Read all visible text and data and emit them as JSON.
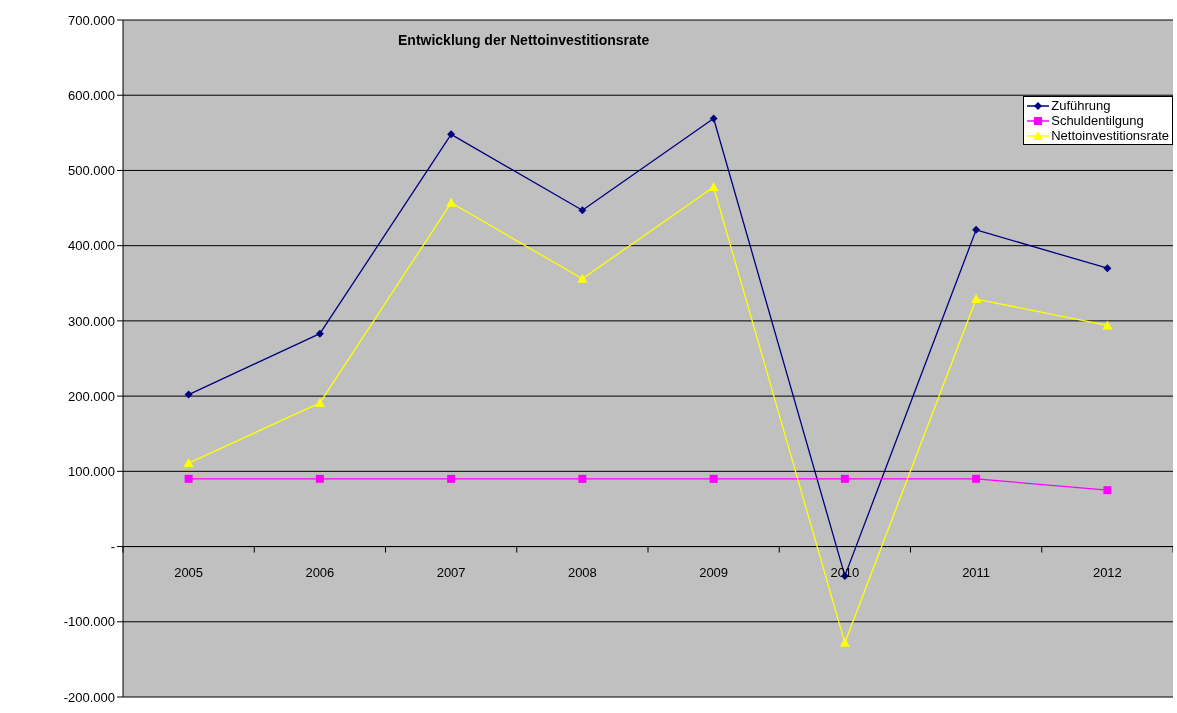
{
  "chart_data": {
    "type": "line",
    "title": "Entwicklung der Nettoinvestitionsrate",
    "categories": [
      "2005",
      "2006",
      "2007",
      "2008",
      "2009",
      "2010",
      "2011",
      "2012"
    ],
    "series": [
      {
        "name": "Zuführung",
        "color": "#000080",
        "marker": "diamond",
        "values": [
          202000,
          283000,
          548000,
          447000,
          569000,
          -39000,
          421000,
          370000
        ]
      },
      {
        "name": "Schuldentilgung",
        "color": "#ff00ff",
        "marker": "square",
        "values": [
          90000,
          90000,
          90000,
          90000,
          90000,
          90000,
          90000,
          75000
        ]
      },
      {
        "name": "Nettoinvestitionsrate",
        "color": "#ffff00",
        "marker": "triangle",
        "values": [
          111000,
          191000,
          457000,
          356000,
          478000,
          -128000,
          329000,
          294000
        ]
      }
    ],
    "ylim": [
      -200000,
      700000
    ],
    "yticks": [
      {
        "value": -200000,
        "label": "-200.000"
      },
      {
        "value": -100000,
        "label": "-100.000"
      },
      {
        "value": 0,
        "label": "-"
      },
      {
        "value": 100000,
        "label": "100.000"
      },
      {
        "value": 200000,
        "label": "200.000"
      },
      {
        "value": 300000,
        "label": "300.000"
      },
      {
        "value": 400000,
        "label": "400.000"
      },
      {
        "value": 500000,
        "label": "500.000"
      },
      {
        "value": 600000,
        "label": "600.000"
      },
      {
        "value": 700000,
        "label": "700.000"
      }
    ],
    "grid": "y",
    "legend": "top right"
  }
}
